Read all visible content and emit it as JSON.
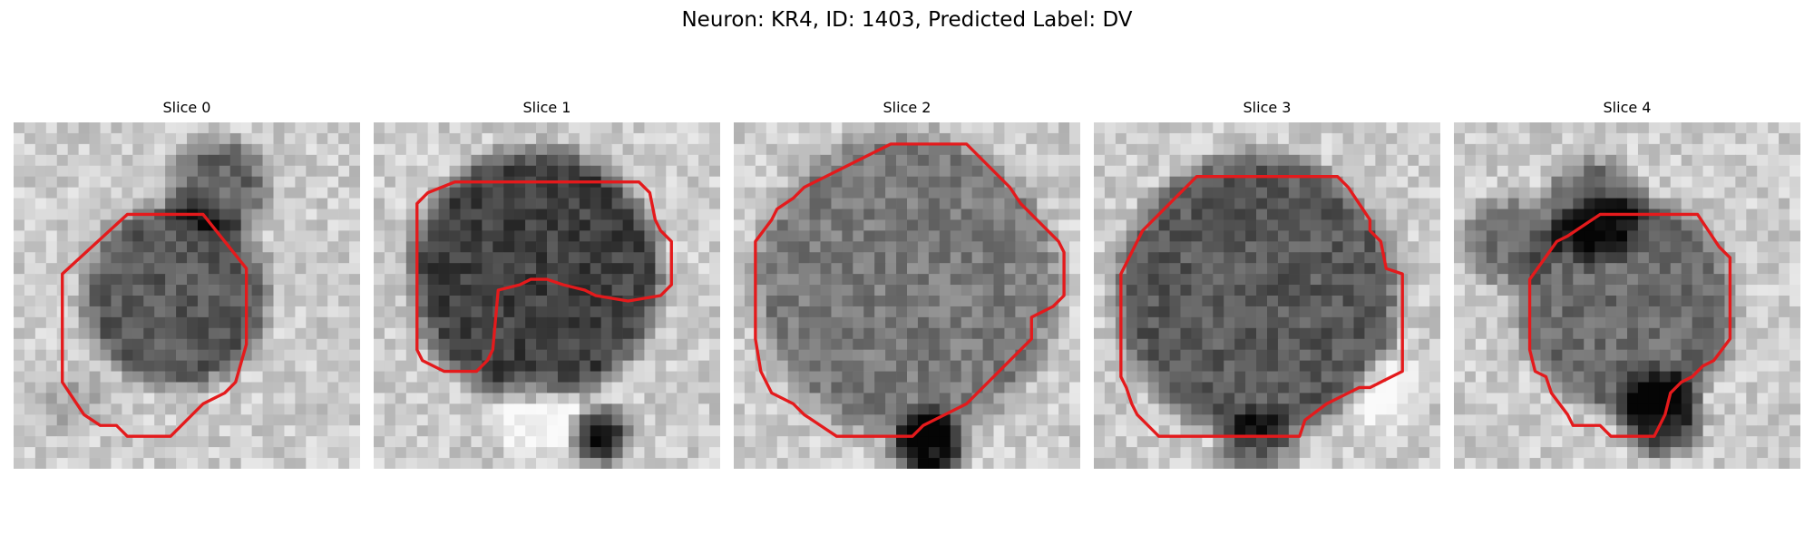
{
  "figure": {
    "title": "Neuron: KR4, ID: 1403, Predicted Label: DV"
  },
  "panels": [
    {
      "title": "Slice 0"
    },
    {
      "title": "Slice 1"
    },
    {
      "title": "Slice 2"
    },
    {
      "title": "Slice 3"
    },
    {
      "title": "Slice 4"
    }
  ],
  "colors": {
    "contour": "#e41a1c",
    "background": "#ffffff"
  }
}
